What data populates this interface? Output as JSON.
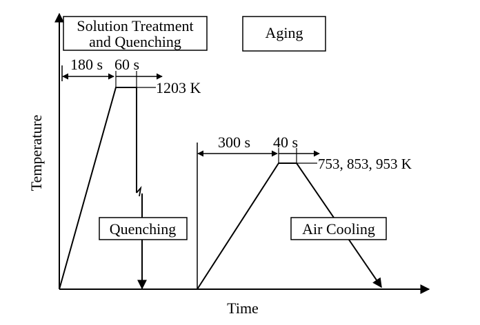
{
  "axes": {
    "y_label": "Temperature",
    "x_label": "Time"
  },
  "stages": {
    "solution": {
      "line1": "Solution Treatment",
      "line2": "and Quenching"
    },
    "aging": "Aging"
  },
  "treatment": {
    "heat_time": "180 s",
    "hold_time": "60 s",
    "temperature": "1203 K",
    "cooling": "Quenching"
  },
  "aging_step": {
    "heat_time": "300 s",
    "hold_time": "40 s",
    "temperatures": "753, 853, 953 K",
    "cooling": "Air Cooling"
  }
}
